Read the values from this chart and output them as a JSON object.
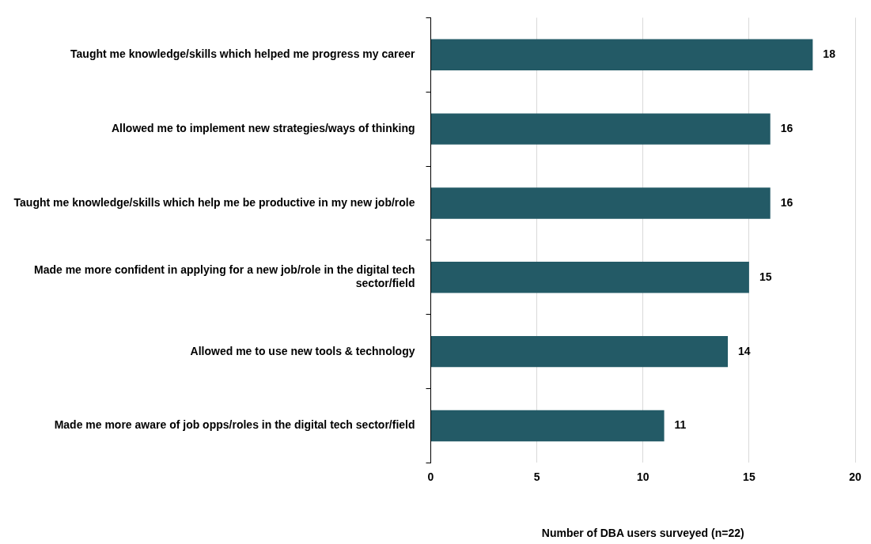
{
  "chart_data": {
    "type": "bar",
    "orientation": "horizontal",
    "xlabel": "Number of DBA users surveyed (n=22)",
    "categories": [
      "Taught me knowledge/skills which helped me progress my career",
      "Allowed me to implement new strategies/ways of thinking",
      "Taught me knowledge/skills which help me be productive in my new job/role",
      "Made me more confident in applying for a new job/role in the digital tech sector/field",
      "Allowed me to use new tools & technology",
      "Made me more aware of job opps/roles in the digital tech sector/field"
    ],
    "values": [
      18,
      16,
      16,
      15,
      14,
      11
    ],
    "color": "#235a66",
    "xlim": [
      0,
      20
    ],
    "xticks": [
      0,
      5,
      10,
      15,
      20
    ],
    "grid": "x",
    "data_labels": true,
    "legend": false
  }
}
